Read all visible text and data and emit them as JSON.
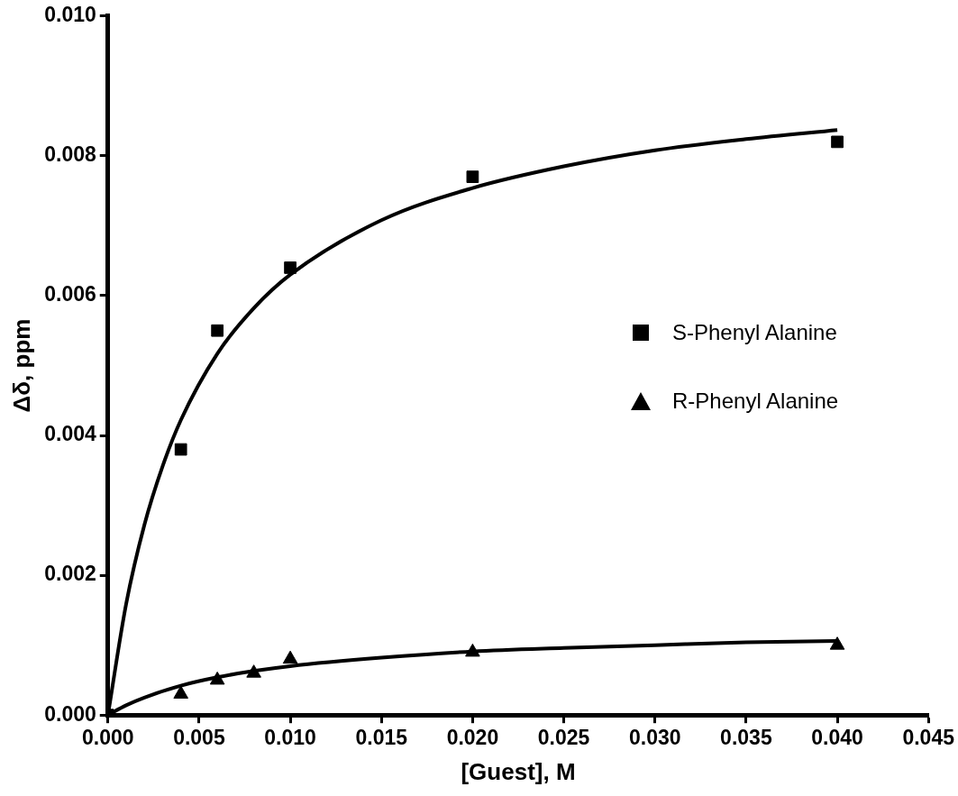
{
  "chart_data": {
    "type": "scatter",
    "xlabel": "[Guest], M",
    "ylabel": "Δδ, ppm",
    "xlim": [
      0,
      0.045
    ],
    "ylim": [
      0,
      0.01
    ],
    "xticks": [
      {
        "value": 0,
        "label": "0.000"
      },
      {
        "value": 0.005,
        "label": "0.005"
      },
      {
        "value": 0.01,
        "label": "0.010"
      },
      {
        "value": 0.015,
        "label": "0.015"
      },
      {
        "value": 0.02,
        "label": "0.020"
      },
      {
        "value": 0.025,
        "label": "0.025"
      },
      {
        "value": 0.03,
        "label": "0.030"
      },
      {
        "value": 0.035,
        "label": "0.035"
      },
      {
        "value": 0.04,
        "label": "0.040"
      },
      {
        "value": 0.045,
        "label": "0.045"
      }
    ],
    "yticks": [
      {
        "value": 0,
        "label": "0.000"
      },
      {
        "value": 0.002,
        "label": "0.002"
      },
      {
        "value": 0.004,
        "label": "0.004"
      },
      {
        "value": 0.006,
        "label": "0.006"
      },
      {
        "value": 0.008,
        "label": "0.008"
      },
      {
        "value": 0.01,
        "label": "0.010"
      }
    ],
    "grid": false,
    "legend": "right",
    "series": [
      {
        "name": "S-Phenyl Alanine",
        "color": "#000000",
        "marker": "square",
        "x": [
          0,
          0.004,
          0.006,
          0.01,
          0.02,
          0.04
        ],
        "values": [
          0,
          0.0038,
          0.0055,
          0.0064,
          0.0077,
          0.0082
        ]
      },
      {
        "name": "R-Phenyl Alanine",
        "color": "#000000",
        "marker": "triangle",
        "x": [
          0.004,
          0.006,
          0.008,
          0.01,
          0.02,
          0.04
        ],
        "values": [
          0.0003,
          0.0005,
          0.0006,
          0.0008,
          0.0009,
          0.001
        ]
      },
      {
        "type": "line",
        "color": "#000000",
        "marker": "none",
        "x": [
          0,
          0.001,
          0.002,
          0.003,
          0.004,
          0.006,
          0.008,
          0.01,
          0.015,
          0.02,
          0.025,
          0.03,
          0.035,
          0.04
        ],
        "values": [
          0,
          0.00159,
          0.00272,
          0.00356,
          0.00422,
          0.00517,
          0.00582,
          0.0063,
          0.00708,
          0.00754,
          0.00785,
          0.00808,
          0.00824,
          0.00837
        ]
      },
      {
        "type": "line",
        "color": "#000000",
        "marker": "none",
        "x": [
          0,
          0.001,
          0.002,
          0.004,
          0.006,
          0.008,
          0.01,
          0.015,
          0.02,
          0.025,
          0.03,
          0.035,
          0.04
        ],
        "values": [
          0,
          0.00014,
          0.00025,
          0.00042,
          0.00054,
          0.00063,
          0.0007,
          0.00082,
          0.00091,
          0.00096,
          0.001,
          0.00104,
          0.00106
        ]
      }
    ]
  }
}
